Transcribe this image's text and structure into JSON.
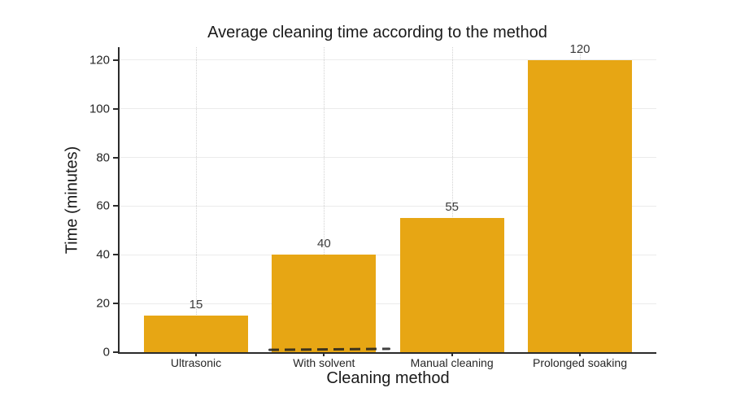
{
  "chart_data": {
    "type": "bar",
    "title": "Average cleaning time according to the method",
    "xlabel": "Cleaning method",
    "ylabel": "Time (minutes)",
    "categories": [
      "Ultrasonic",
      "With solvent",
      "Manual cleaning",
      "Prolonged soaking"
    ],
    "values": [
      15,
      40,
      55,
      120
    ],
    "value_labels": [
      "15",
      "40",
      "55",
      "120"
    ],
    "yticks": [
      0,
      20,
      40,
      60,
      80,
      100,
      120
    ],
    "ylim": [
      0,
      125.3
    ],
    "grid": "horizontal solid faint, vertical dotted at bar centers",
    "legend": "none",
    "colors": {
      "bar": "#E7A614",
      "spine": "#2b2b2b",
      "grid_horizontal": "#ebebeb",
      "grid_vertical": "#d2d2d2",
      "tick_label": "#262626",
      "value_label": "#3a3a3a",
      "title": "#1a1a1a",
      "background": "#ffffff"
    }
  }
}
